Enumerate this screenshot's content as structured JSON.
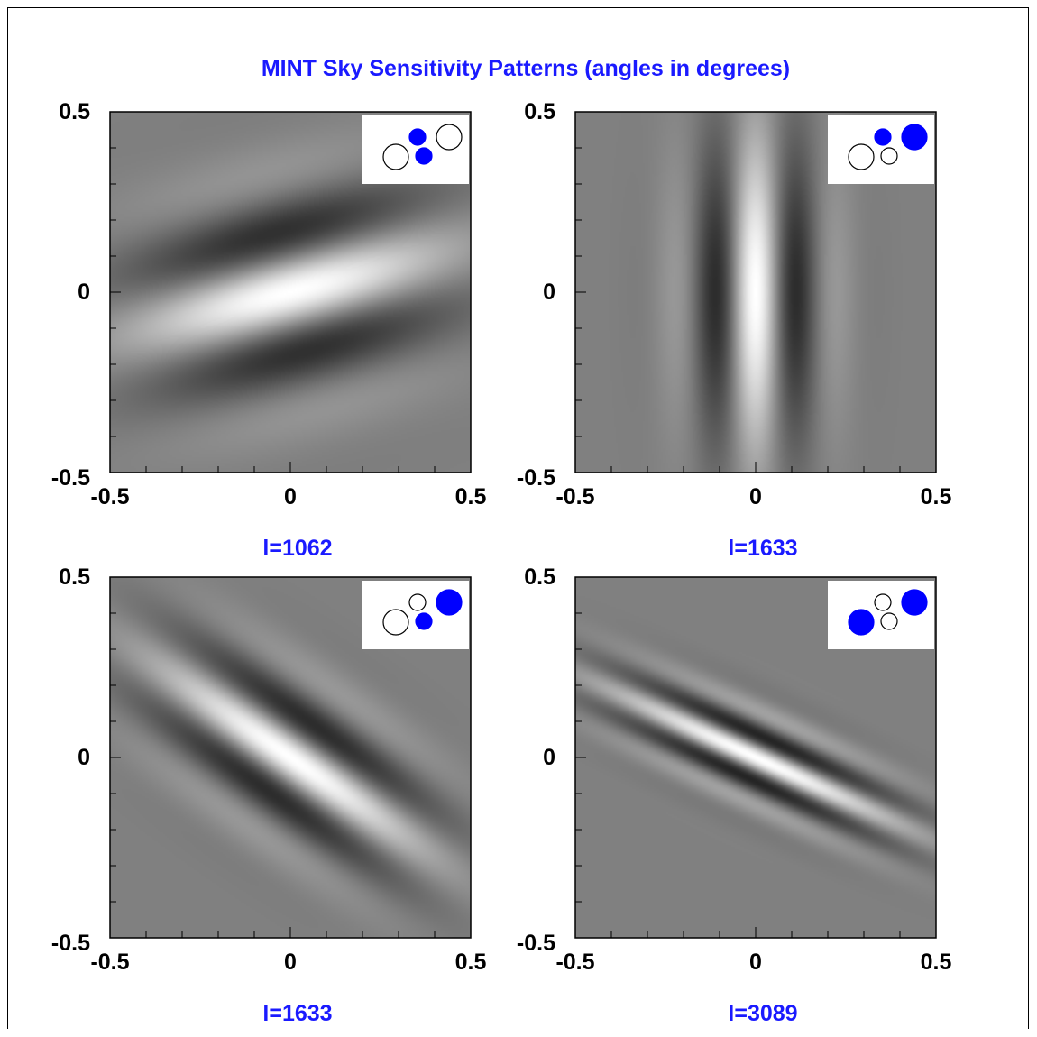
{
  "figure": {
    "title": "MINT Sky Sensitivity Patterns (angles in degrees)"
  },
  "colors": {
    "title": "#1a1aff",
    "caption": "#1a1aff",
    "filled_circle": "#0000ff",
    "background_gray": "#808080"
  },
  "chart_data": [
    {
      "type": "heatmap",
      "caption": "l=1062",
      "xlim": [
        -0.5,
        0.5
      ],
      "ylim": [
        -0.5,
        0.5
      ],
      "x_ticks": [
        "-0.5",
        "0",
        "0.5"
      ],
      "y_ticks": [
        "0.5",
        "0",
        "-0.5"
      ],
      "fringe_multipole_l": 1062,
      "fringe_orientation_deg": 15,
      "baseline_legend": {
        "circles": [
          {
            "label": "large-left",
            "filled": false
          },
          {
            "label": "small-middle-top",
            "filled": true
          },
          {
            "label": "small-middle-bottom",
            "filled": true
          },
          {
            "label": "large-right",
            "filled": false
          }
        ]
      }
    },
    {
      "type": "heatmap",
      "caption": "l=1633",
      "xlim": [
        -0.5,
        0.5
      ],
      "ylim": [
        -0.5,
        0.5
      ],
      "x_ticks": [
        "-0.5",
        "0",
        "0.5"
      ],
      "y_ticks": [
        "0.5",
        "0",
        "-0.5"
      ],
      "fringe_multipole_l": 1633,
      "fringe_orientation_deg": 90,
      "baseline_legend": {
        "circles": [
          {
            "label": "large-left",
            "filled": false
          },
          {
            "label": "small-middle-top",
            "filled": true
          },
          {
            "label": "small-middle-bottom",
            "filled": false
          },
          {
            "label": "large-right",
            "filled": true
          }
        ]
      }
    },
    {
      "type": "heatmap",
      "caption": "l=1633",
      "xlim": [
        -0.5,
        0.5
      ],
      "ylim": [
        -0.5,
        0.5
      ],
      "x_ticks": [
        "-0.5",
        "0",
        "0.5"
      ],
      "y_ticks": [
        "0.5",
        "0",
        "-0.5"
      ],
      "fringe_multipole_l": 1633,
      "fringe_orientation_deg": -35,
      "baseline_legend": {
        "circles": [
          {
            "label": "large-left",
            "filled": false
          },
          {
            "label": "small-middle-top",
            "filled": false
          },
          {
            "label": "small-middle-bottom",
            "filled": true
          },
          {
            "label": "large-right",
            "filled": true
          }
        ]
      }
    },
    {
      "type": "heatmap",
      "caption": "l=3089",
      "xlim": [
        -0.5,
        0.5
      ],
      "ylim": [
        -0.5,
        0.5
      ],
      "x_ticks": [
        "-0.5",
        "0",
        "0.5"
      ],
      "y_ticks": [
        "0.5",
        "0",
        "-0.5"
      ],
      "fringe_multipole_l": 3089,
      "fringe_orientation_deg": -25,
      "baseline_legend": {
        "circles": [
          {
            "label": "large-left",
            "filled": true
          },
          {
            "label": "small-middle-top",
            "filled": false
          },
          {
            "label": "small-middle-bottom",
            "filled": false
          },
          {
            "label": "large-right",
            "filled": true
          }
        ]
      }
    }
  ]
}
